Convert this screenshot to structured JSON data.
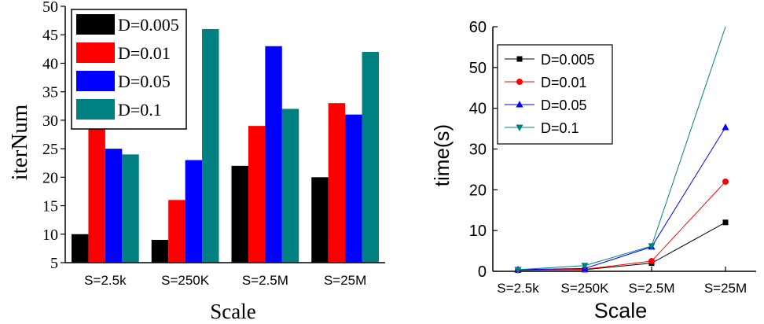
{
  "chart_data": [
    {
      "type": "bar",
      "title": "",
      "xlabel": "Scale",
      "ylabel": "iterNum",
      "categories": [
        "S=2.5k",
        "S=250K",
        "S=2.5M",
        "S=25M"
      ],
      "ylim": [
        5,
        50
      ],
      "yticks": [
        "5",
        "10",
        "15",
        "20",
        "25",
        "30",
        "35",
        "40",
        "45",
        "50"
      ],
      "grid": false,
      "legend": "top-left",
      "series": [
        {
          "name": "D=0.005",
          "color": "#000000",
          "values": [
            10,
            9,
            22,
            20
          ]
        },
        {
          "name": "D=0.01",
          "color": "#ff0000",
          "values": [
            29,
            16,
            29,
            33
          ]
        },
        {
          "name": "D=0.05",
          "color": "#0000ff",
          "values": [
            25,
            23,
            43,
            31
          ]
        },
        {
          "name": "D=0.1",
          "color": "#008080",
          "values": [
            24,
            46,
            32,
            42
          ]
        }
      ]
    },
    {
      "type": "line",
      "title": "",
      "xlabel": "Scale",
      "ylabel": "time(s)",
      "categories": [
        "S=2.5k",
        "S=250K",
        "S=2.5M",
        "S=25M"
      ],
      "ylim": [
        0,
        60
      ],
      "yticks": [
        "0",
        "10",
        "20",
        "30",
        "40",
        "50",
        "60"
      ],
      "grid": false,
      "legend": "top-left",
      "series": [
        {
          "name": "D=0.005",
          "color": "#000000",
          "marker": "square",
          "values": [
            0.3,
            0.4,
            2,
            12
          ]
        },
        {
          "name": "D=0.01",
          "color": "#ff0000",
          "marker": "circle",
          "values": [
            0.3,
            0.5,
            2.5,
            22
          ]
        },
        {
          "name": "D=0.05",
          "color": "#0000ff",
          "marker": "triangle-up",
          "values": [
            0.4,
            0.7,
            6,
            35.3
          ]
        },
        {
          "name": "D=0.1",
          "color": "#008080",
          "marker": "triangle-down",
          "values": [
            0.4,
            1.4,
            6.2,
            60
          ]
        }
      ]
    }
  ]
}
